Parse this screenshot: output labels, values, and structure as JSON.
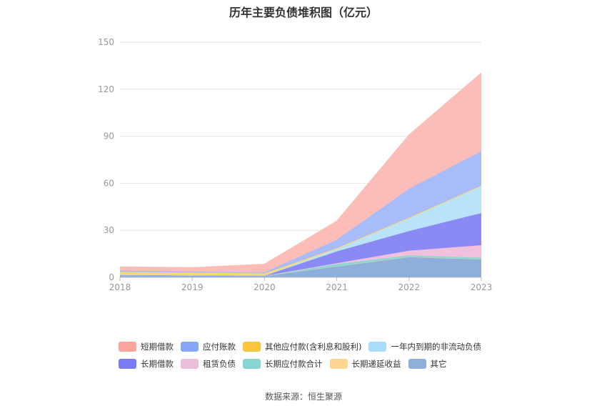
{
  "title": "历年主要负债堆积图（亿元）",
  "source": "数据来源：恒生聚源",
  "chart_data": {
    "type": "area",
    "stacked": true,
    "x": [
      "2018",
      "2019",
      "2020",
      "2021",
      "2022",
      "2023"
    ],
    "yticks": [
      "0",
      "30",
      "60",
      "90",
      "120",
      "150"
    ],
    "ylim": [
      0,
      150
    ],
    "grid": true,
    "legend_position": "bottom",
    "series": [
      {
        "name": "其它",
        "color": "#8eaedc",
        "values": [
          1.5,
          1.2,
          1.0,
          7.0,
          13.0,
          11.5
        ]
      },
      {
        "name": "长期递延收益",
        "color": "#ffd591",
        "values": [
          0,
          0,
          0,
          0,
          0,
          0
        ]
      },
      {
        "name": "长期应付款合计",
        "color": "#87d9d6",
        "values": [
          0,
          0,
          0,
          1.5,
          1.0,
          1.0
        ]
      },
      {
        "name": "租赁负债",
        "color": "#f0c0dc",
        "values": [
          0,
          0,
          0,
          0.5,
          3.0,
          8.0
        ]
      },
      {
        "name": "长期借款",
        "color": "#8b8af5",
        "values": [
          0,
          0,
          0,
          7.5,
          12.5,
          20.5
        ]
      },
      {
        "name": "一年内到期的非流动负债",
        "color": "#b9e3f9",
        "values": [
          0.2,
          0.2,
          0.2,
          1.5,
          8.0,
          17.0
        ]
      },
      {
        "name": "其他应付款(含利息和股利)",
        "color": "#ffd86b",
        "values": [
          1.8,
          1.6,
          1.3,
          0.5,
          0.5,
          0.5
        ]
      },
      {
        "name": "应付账款",
        "color": "#a8bcfa",
        "values": [
          0.8,
          0.7,
          0.7,
          5.5,
          18.5,
          22.0
        ]
      },
      {
        "name": "短期借款",
        "color": "#fcbdb8",
        "values": [
          2.5,
          2.6,
          5.3,
          12.0,
          34.5,
          50.0
        ]
      }
    ]
  },
  "legend": {
    "row1": [
      {
        "label": "短期借款",
        "color": "#fba59d"
      },
      {
        "label": "应付账款",
        "color": "#86a7fb"
      },
      {
        "label": "其他应付款(含利息和股利)",
        "color": "#ffc53d"
      },
      {
        "label": "一年内到期的非流动负债",
        "color": "#a8dcfa"
      }
    ],
    "row2": [
      {
        "label": "长期借款",
        "color": "#7b7cf3"
      },
      {
        "label": "租赁负债",
        "color": "#ebbedb"
      },
      {
        "label": "长期应付款合计",
        "color": "#86d7d4"
      },
      {
        "label": "长期递延收益",
        "color": "#ffd591"
      },
      {
        "label": "其它",
        "color": "#8eaedc"
      }
    ]
  }
}
